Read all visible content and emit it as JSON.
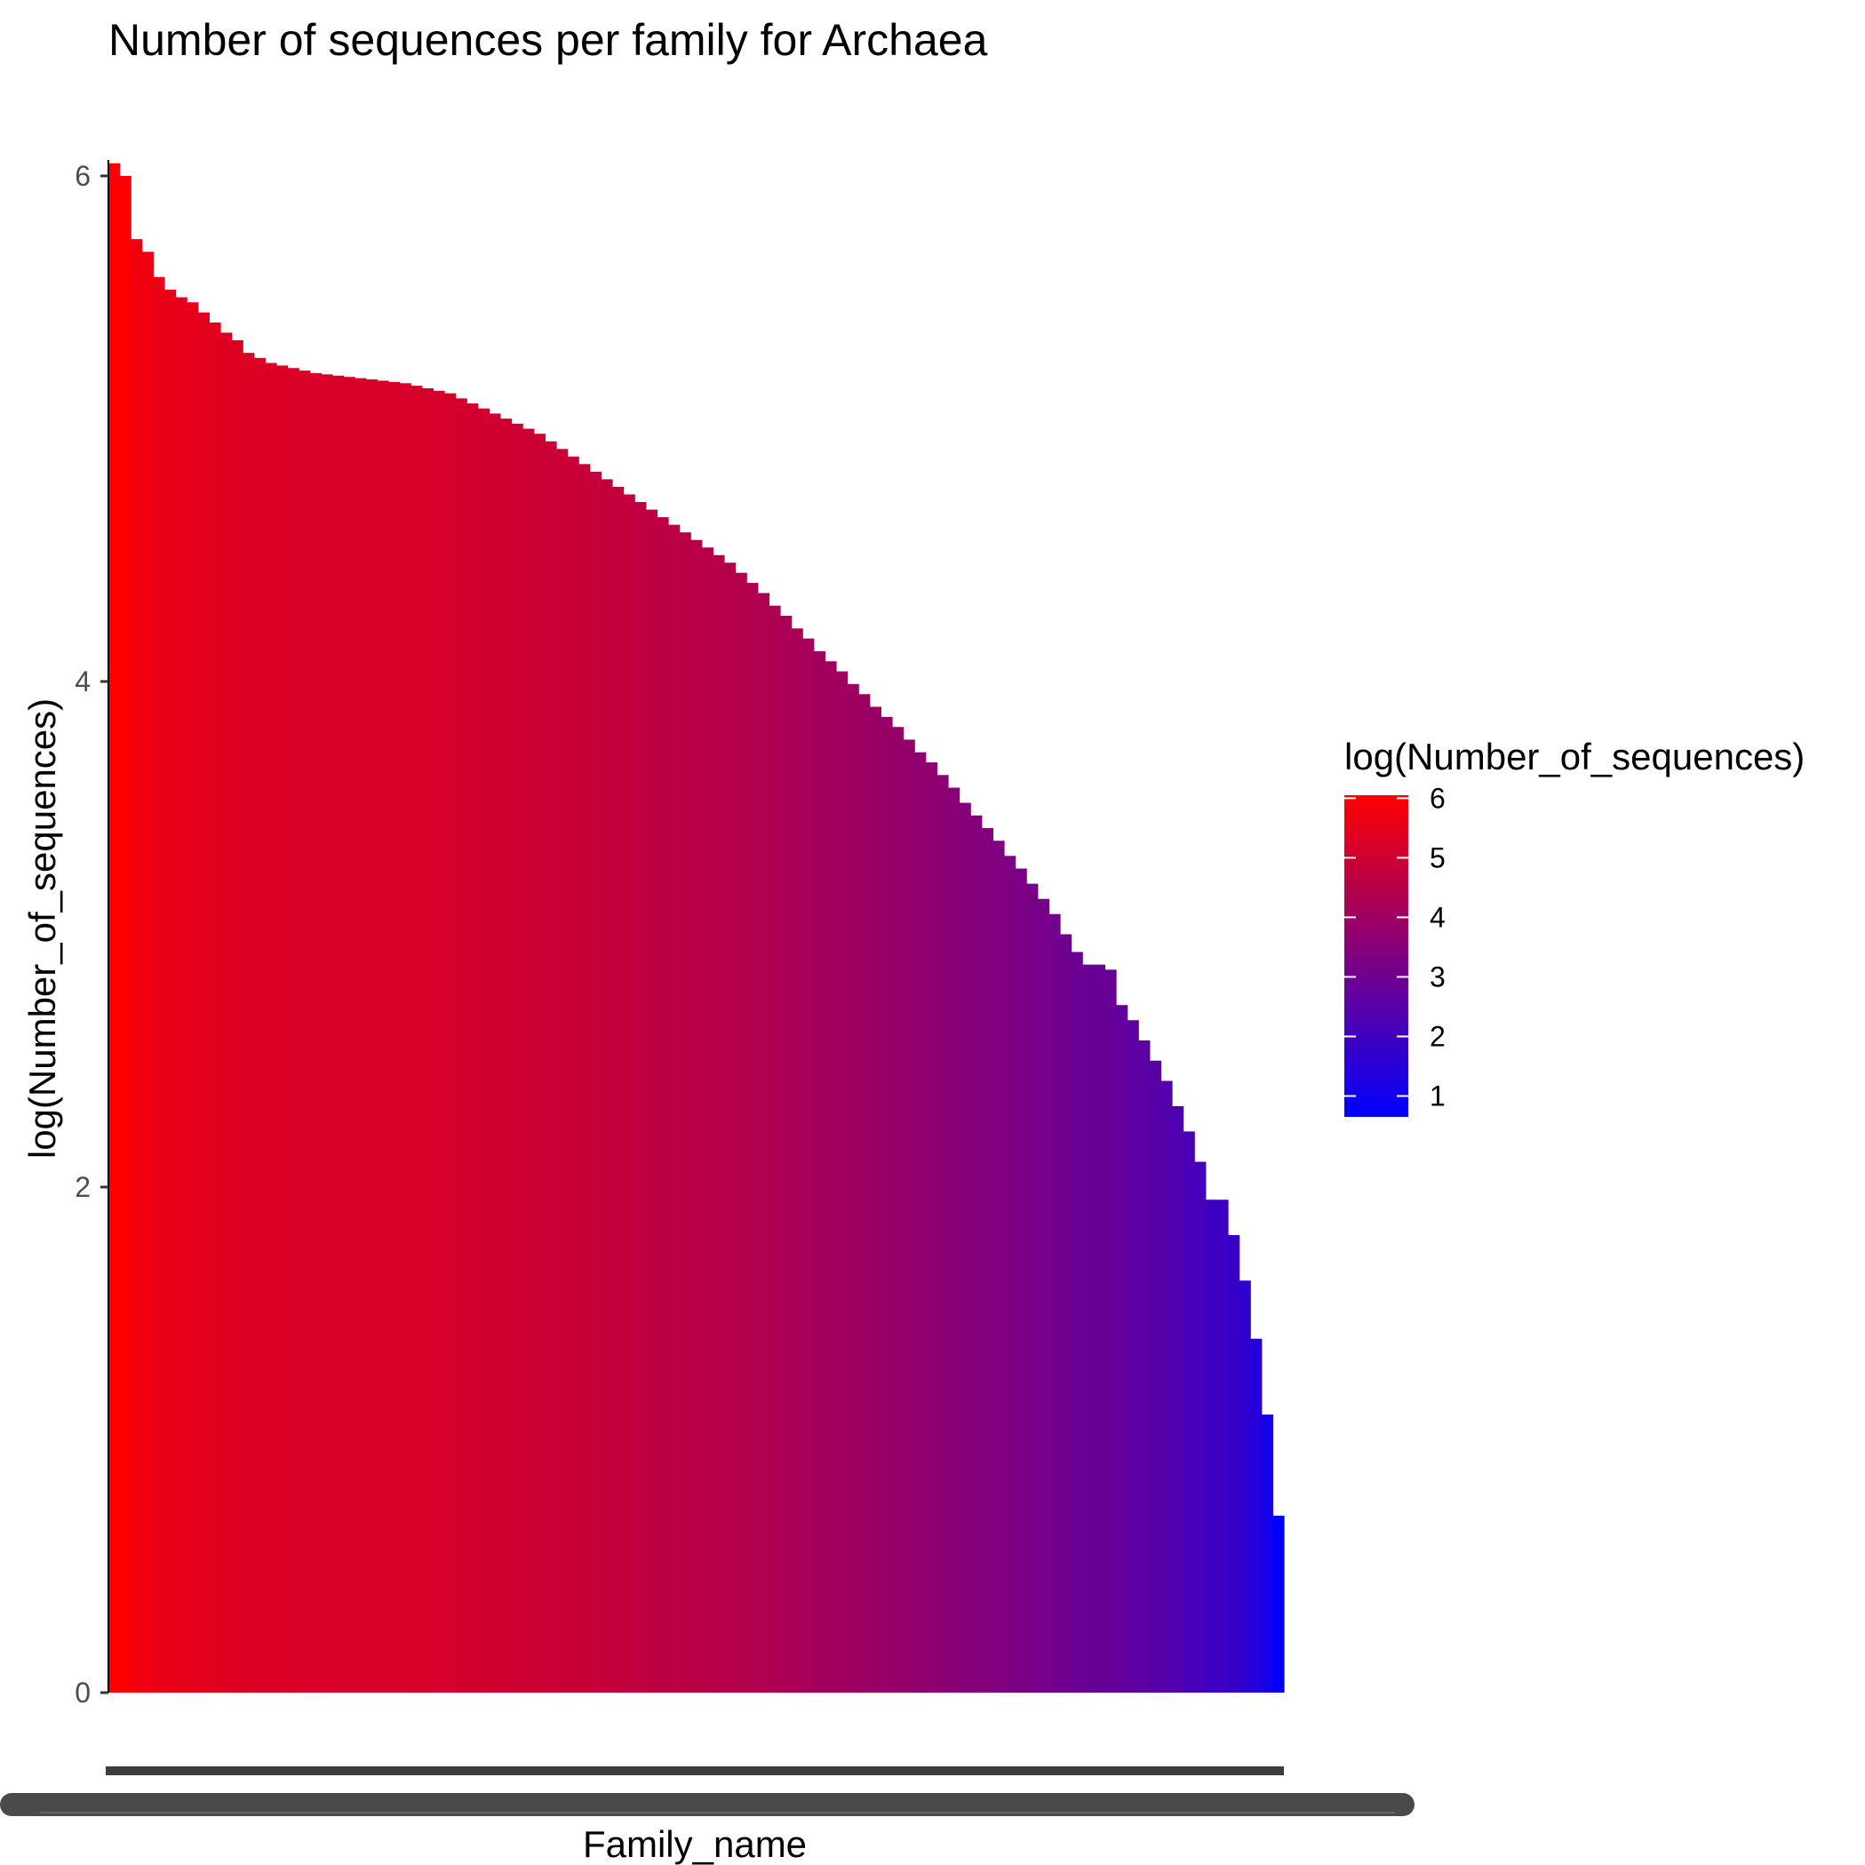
{
  "chart_data": {
    "type": "bar",
    "title": "Number of sequences per family for Archaea",
    "xlabel": "Family_name",
    "ylabel": "log(Number_of_sequences)",
    "ylim": [
      0,
      6.1
    ],
    "y_ticks": [
      0,
      2,
      4,
      6
    ],
    "x_tick_labels_visible": false,
    "grid": false,
    "legend": {
      "title": "log(Number_of_sequences)",
      "placement": "right",
      "type": "colorbar",
      "ticks": [
        1,
        2,
        3,
        4,
        5,
        6
      ],
      "color_low": "#0000ff",
      "color_high": "#ff0000",
      "range": [
        0.65,
        6.05
      ]
    },
    "sorted": "descending",
    "values": [
      6.05,
      6.0,
      5.75,
      5.7,
      5.6,
      5.55,
      5.52,
      5.5,
      5.46,
      5.42,
      5.38,
      5.35,
      5.3,
      5.28,
      5.26,
      5.25,
      5.24,
      5.23,
      5.22,
      5.215,
      5.21,
      5.205,
      5.2,
      5.195,
      5.19,
      5.185,
      5.18,
      5.17,
      5.16,
      5.15,
      5.14,
      5.12,
      5.1,
      5.08,
      5.06,
      5.04,
      5.02,
      5.0,
      4.98,
      4.95,
      4.92,
      4.89,
      4.86,
      4.83,
      4.8,
      4.77,
      4.74,
      4.71,
      4.68,
      4.65,
      4.62,
      4.59,
      4.56,
      4.53,
      4.5,
      4.47,
      4.43,
      4.39,
      4.35,
      4.3,
      4.26,
      4.21,
      4.17,
      4.12,
      4.08,
      4.04,
      3.99,
      3.95,
      3.9,
      3.86,
      3.82,
      3.77,
      3.72,
      3.68,
      3.63,
      3.58,
      3.52,
      3.47,
      3.42,
      3.37,
      3.31,
      3.26,
      3.2,
      3.14,
      3.08,
      3.0,
      2.93,
      2.88,
      2.88,
      2.86,
      2.72,
      2.66,
      2.58,
      2.5,
      2.42,
      2.32,
      2.22,
      2.1,
      1.95,
      1.95,
      1.81,
      1.63,
      1.4,
      1.1,
      0.7
    ]
  }
}
